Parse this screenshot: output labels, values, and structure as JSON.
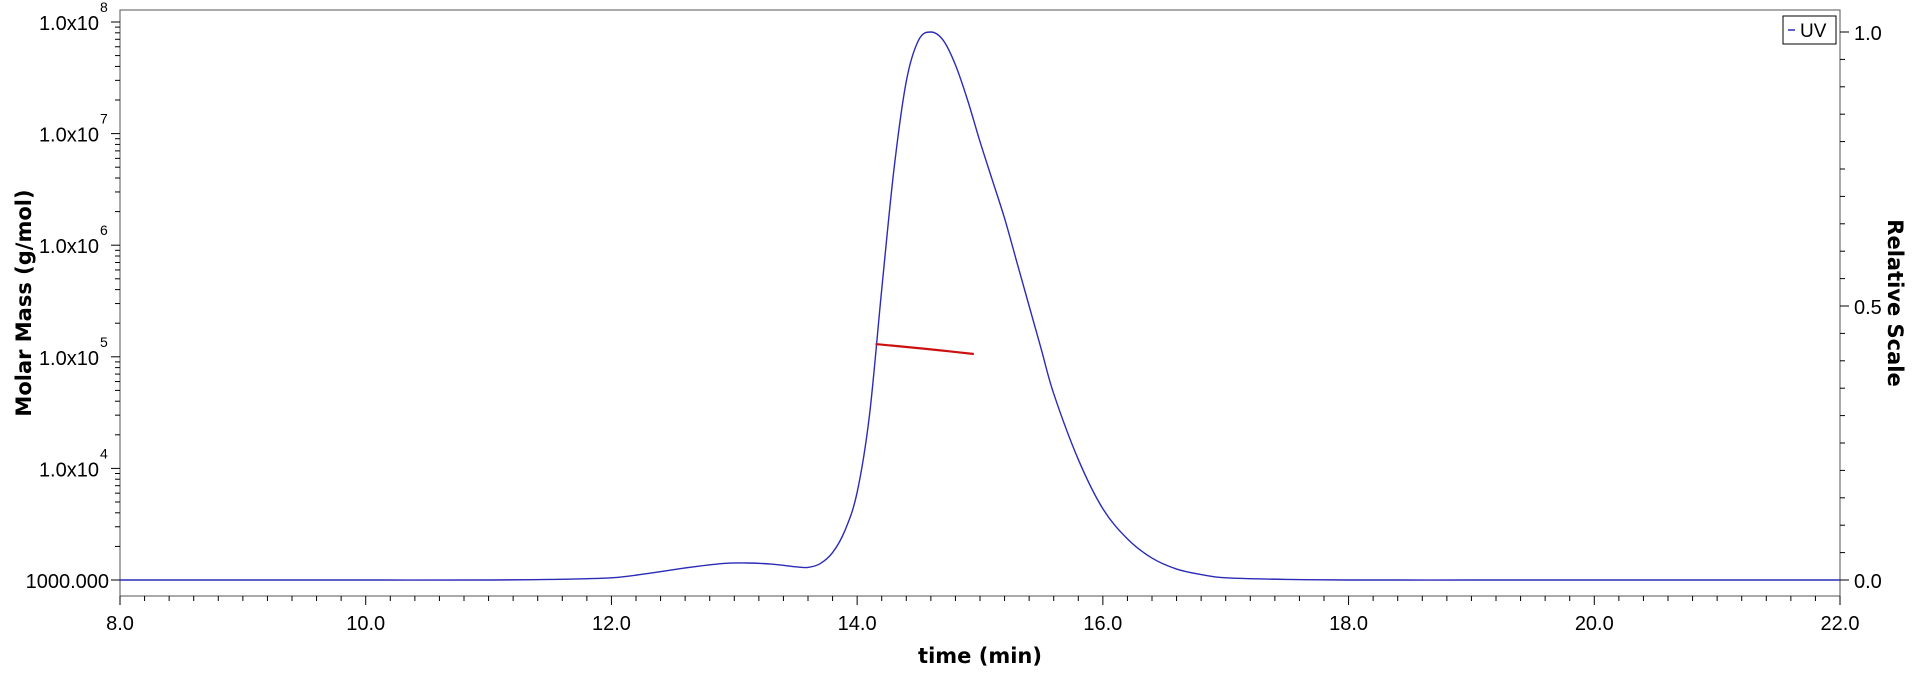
{
  "chart_data": {
    "type": "line",
    "xlabel": "time (min)",
    "ylabel_left": "Molar Mass (g/mol)",
    "ylabel_right": "Relative Scale",
    "xlim": [
      8.0,
      22.0
    ],
    "left_scale": "log",
    "ylim_left": [
      1000,
      100000000
    ],
    "ylim_right": [
      0.0,
      1.0
    ],
    "x_ticks": [
      "8.0",
      "10.0",
      "12.0",
      "14.0",
      "16.0",
      "18.0",
      "20.0",
      "22.0"
    ],
    "y_left_ticks": [
      {
        "value": 1000,
        "text": "1000.000",
        "exp": ""
      },
      {
        "value": 10000,
        "text": "1.0x10",
        "exp": "4"
      },
      {
        "value": 100000,
        "text": "1.0x10",
        "exp": "5"
      },
      {
        "value": 1000000,
        "text": "1.0x10",
        "exp": "6"
      },
      {
        "value": 10000000,
        "text": "1.0x10",
        "exp": "7"
      },
      {
        "value": 100000000,
        "text": "1.0x10",
        "exp": "8"
      }
    ],
    "y_right_ticks": [
      "0.0",
      "0.5",
      "1.0"
    ],
    "legend": {
      "label": "UV",
      "position": "top-right"
    },
    "series": [
      {
        "name": "UV",
        "color": "#2b2bb8",
        "axis": "right",
        "x": [
          8.0,
          9.0,
          10.0,
          11.0,
          11.5,
          12.0,
          12.3,
          12.6,
          12.9,
          13.1,
          13.3,
          13.5,
          13.6,
          13.7,
          13.8,
          13.9,
          14.0,
          14.1,
          14.2,
          14.3,
          14.4,
          14.5,
          14.6,
          14.7,
          14.8,
          14.9,
          15.0,
          15.1,
          15.2,
          15.3,
          15.4,
          15.5,
          15.6,
          15.8,
          16.0,
          16.2,
          16.4,
          16.6,
          16.8,
          17.0,
          17.5,
          18.0,
          19.0,
          20.0,
          21.0,
          22.0
        ],
        "y": [
          0.0,
          0.0,
          0.0,
          0.0,
          0.001,
          0.004,
          0.012,
          0.022,
          0.03,
          0.031,
          0.029,
          0.024,
          0.023,
          0.03,
          0.05,
          0.09,
          0.16,
          0.3,
          0.53,
          0.75,
          0.91,
          0.985,
          1.0,
          0.985,
          0.94,
          0.875,
          0.8,
          0.73,
          0.66,
          0.58,
          0.5,
          0.42,
          0.34,
          0.22,
          0.13,
          0.075,
          0.04,
          0.02,
          0.01,
          0.004,
          0.001,
          0.0,
          0.0,
          0.0,
          0.0,
          0.0
        ]
      },
      {
        "name": "Molar Mass",
        "color": "#cc1111",
        "axis": "left",
        "x": [
          14.15,
          14.35,
          14.55,
          14.75,
          14.95
        ],
        "y": [
          130000,
          124000,
          118000,
          112000,
          106000
        ]
      }
    ]
  }
}
